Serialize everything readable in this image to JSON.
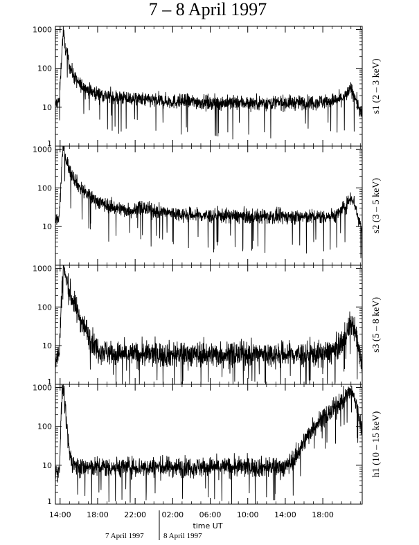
{
  "figure": {
    "title": "7 – 8 April 1997",
    "xlabel": "time UT",
    "date_labels": [
      "7 April 1997",
      "8 April 1997"
    ]
  },
  "chart_data": {
    "type": "line",
    "title": "7 – 8 April 1997",
    "xlabel": "time UT",
    "x_unit": "hours UT from 7 April 1997 00:00",
    "xlim": [
      13.5,
      46.2
    ],
    "x_tick_labels": [
      "14:00",
      "18:00",
      "22:00",
      "02:00",
      "06:00",
      "10:00",
      "14:00",
      "18:00"
    ],
    "x_tick_values": [
      14,
      18,
      22,
      26,
      30,
      34,
      38,
      42
    ],
    "y_scale": "log",
    "grid": false,
    "panels": [
      {
        "ylabel": "s1  (2 – 3 keV)",
        "ylim": [
          1,
          1200
        ],
        "y_tick_labels": [
          "1",
          "10",
          "100",
          "1000"
        ],
        "series": {
          "x": [
            13.5,
            13.9,
            14.05,
            14.2,
            14.35,
            14.5,
            15.0,
            15.5,
            16.0,
            17.0,
            18.0,
            19.0,
            20.0,
            22.0,
            24.0,
            26.0,
            28.0,
            30.0,
            32.0,
            34.0,
            36.0,
            38.0,
            40.0,
            42.0,
            43.5,
            44.5,
            45.0,
            45.4,
            45.8,
            46.2
          ],
          "y": [
            12,
            14,
            60,
            300,
            950,
            400,
            120,
            60,
            40,
            28,
            22,
            20,
            18,
            16,
            15,
            14,
            14,
            13,
            13,
            13,
            13,
            13,
            13,
            14,
            15,
            20,
            30,
            20,
            10,
            6
          ]
        }
      },
      {
        "ylabel": "s2  (3 – 5 keV)",
        "ylim": [
          1,
          1200
        ],
        "y_tick_labels": [
          "10",
          "100",
          "1000"
        ],
        "series": {
          "x": [
            13.5,
            13.9,
            14.05,
            14.2,
            14.35,
            14.5,
            15.0,
            15.5,
            16.0,
            17.0,
            18.0,
            19.0,
            20.0,
            21.0,
            22.0,
            22.5,
            24.0,
            26.0,
            28.0,
            30.0,
            32.0,
            34.0,
            36.0,
            38.0,
            40.0,
            42.0,
            43.5,
            44.5,
            45.0,
            45.4,
            45.8,
            46.2
          ],
          "y": [
            14,
            16,
            80,
            500,
            1300,
            700,
            300,
            180,
            110,
            65,
            45,
            35,
            30,
            27,
            26,
            32,
            25,
            22,
            20,
            19,
            19,
            18,
            18,
            18,
            18,
            18,
            20,
            35,
            60,
            40,
            15,
            9
          ]
        }
      },
      {
        "ylabel": "s3  (5 – 8 keV)",
        "ylim": [
          1,
          1200
        ],
        "y_tick_labels": [
          "1",
          "10",
          "100",
          "1000"
        ],
        "series": {
          "x": [
            13.5,
            13.9,
            14.05,
            14.2,
            14.35,
            14.5,
            15.0,
            15.5,
            16.0,
            17.0,
            17.5,
            18.0,
            19.0,
            20.0,
            22.0,
            26.0,
            30.0,
            34.0,
            38.0,
            42.0,
            43.5,
            44.5,
            45.0,
            45.4,
            45.8,
            46.2
          ],
          "y": [
            5,
            6,
            40,
            300,
            1200,
            700,
            250,
            120,
            60,
            20,
            12,
            8,
            7,
            6,
            6,
            6,
            6,
            6,
            6,
            6,
            8,
            20,
            40,
            25,
            8,
            4
          ]
        }
      },
      {
        "ylabel": "h1  (10 – 15 keV)",
        "ylim": [
          1,
          1200
        ],
        "y_tick_labels": [
          "1",
          "10",
          "100",
          "1000"
        ],
        "series": {
          "x": [
            13.5,
            13.9,
            14.05,
            14.2,
            14.35,
            14.5,
            14.8,
            15.0,
            15.3,
            15.6,
            16.0,
            18.0,
            22.0,
            26.0,
            30.0,
            34.0,
            38.0,
            39.0,
            40.0,
            41.0,
            42.0,
            43.0,
            44.0,
            45.0,
            45.4,
            45.8,
            46.2
          ],
          "y": [
            6,
            7,
            60,
            600,
            1100,
            300,
            60,
            20,
            12,
            10,
            9,
            9,
            9,
            9,
            9,
            9,
            9,
            15,
            40,
            100,
            160,
            250,
            450,
            800,
            500,
            200,
            80
          ]
        }
      }
    ]
  }
}
